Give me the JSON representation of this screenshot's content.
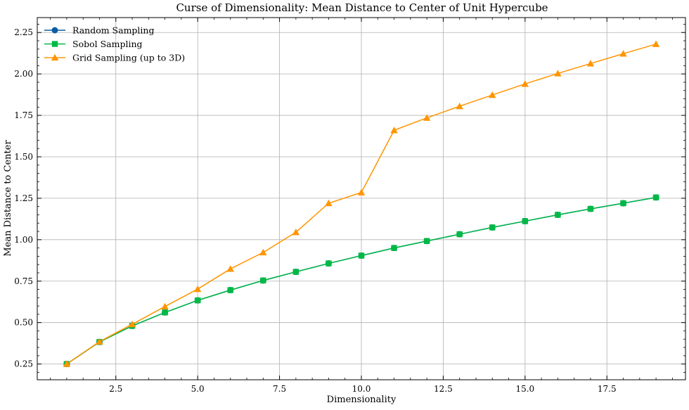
{
  "chart_data": {
    "type": "line",
    "title": "Curse of Dimensionality: Mean Distance to Center of Unit Hypercube",
    "xlabel": "Dimensionality",
    "ylabel": "Mean Distance to Center",
    "xlim": [
      0.1,
      19.9
    ],
    "ylim": [
      0.155,
      2.34
    ],
    "x_ticks": [
      2.5,
      5.0,
      7.5,
      10.0,
      12.5,
      15.0,
      17.5
    ],
    "x_tick_labels": [
      "2.5",
      "5.0",
      "7.5",
      "10.0",
      "12.5",
      "15.0",
      "17.5"
    ],
    "y_ticks": [
      0.25,
      0.5,
      0.75,
      1.0,
      1.25,
      1.5,
      1.75,
      2.0,
      2.25
    ],
    "y_tick_labels": [
      "0.25",
      "0.50",
      "0.75",
      "1.00",
      "1.25",
      "1.50",
      "1.75",
      "2.00",
      "2.25"
    ],
    "grid": true,
    "legend_position": "top-left",
    "x": [
      1,
      2,
      3,
      4,
      5,
      6,
      7,
      8,
      9,
      10,
      11,
      12,
      13,
      14,
      15,
      16,
      17,
      18,
      19
    ],
    "series": [
      {
        "name": "Random Sampling",
        "color": "#0C5DA5",
        "marker": "circle",
        "values": [
          0.25,
          0.383,
          0.48,
          0.561,
          0.634,
          0.696,
          0.754,
          0.806,
          0.857,
          0.904,
          0.95,
          0.992,
          1.033,
          1.074,
          1.112,
          1.15,
          1.186,
          1.22,
          1.255
        ]
      },
      {
        "name": "Sobol Sampling",
        "color": "#00B945",
        "marker": "square",
        "values": [
          0.25,
          0.383,
          0.48,
          0.561,
          0.634,
          0.696,
          0.754,
          0.806,
          0.857,
          0.904,
          0.95,
          0.992,
          1.033,
          1.074,
          1.112,
          1.15,
          1.186,
          1.22,
          1.255
        ]
      },
      {
        "name": "Grid Sampling (up to 3D)",
        "color": "#FF9500",
        "marker": "triangle",
        "values": [
          0.25,
          0.385,
          0.49,
          0.597,
          0.702,
          0.824,
          0.923,
          1.045,
          1.22,
          1.285,
          1.66,
          1.735,
          1.805,
          1.873,
          1.94,
          2.003,
          2.063,
          2.122,
          2.18
        ]
      }
    ]
  }
}
